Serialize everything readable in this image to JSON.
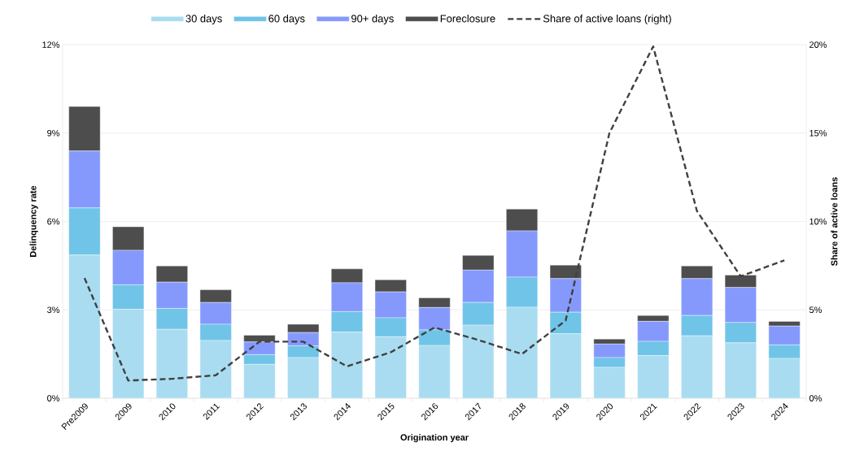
{
  "chart_data": {
    "type": "bar",
    "stacked": true,
    "xlabel": "Origination year",
    "ylabel": "Delinquency rate",
    "y2label": "Share of active loans",
    "categories": [
      "Pre2009",
      "2009",
      "2010",
      "2011",
      "2012",
      "2013",
      "2014",
      "2015",
      "2016",
      "2017",
      "2018",
      "2019",
      "2020",
      "2021",
      "2022",
      "2023",
      "2024"
    ],
    "series": [
      {
        "name": "30 days",
        "color": "#a9dcf0",
        "values": [
          4.86,
          3.02,
          2.34,
          1.96,
          1.15,
          1.38,
          2.25,
          2.09,
          1.79,
          2.48,
          3.09,
          2.19,
          1.05,
          1.45,
          2.12,
          1.88,
          1.35
        ]
      },
      {
        "name": "60 days",
        "color": "#6fc4e8",
        "values": [
          1.6,
          0.83,
          0.71,
          0.55,
          0.33,
          0.4,
          0.69,
          0.64,
          0.53,
          0.77,
          1.02,
          0.73,
          0.33,
          0.48,
          0.69,
          0.69,
          0.46
        ]
      },
      {
        "name": "90+ days",
        "color": "#8599fd",
        "values": [
          1.93,
          1.17,
          0.89,
          0.74,
          0.43,
          0.45,
          0.98,
          0.88,
          0.76,
          1.1,
          1.57,
          1.14,
          0.46,
          0.68,
          1.25,
          1.19,
          0.64
        ]
      },
      {
        "name": "Foreclosure",
        "color": "#4d4d4d",
        "values": [
          1.51,
          0.8,
          0.55,
          0.43,
          0.23,
          0.28,
          0.47,
          0.41,
          0.33,
          0.5,
          0.74,
          0.46,
          0.17,
          0.2,
          0.43,
          0.42,
          0.16
        ]
      },
      {
        "name": "Share of active loans (right)",
        "color": "#404040",
        "type": "line",
        "axis": "y2",
        "line_style": "dashed",
        "values": [
          6.8,
          1.0,
          1.1,
          1.3,
          3.2,
          3.2,
          1.8,
          2.6,
          4.0,
          3.3,
          2.5,
          4.4,
          15.0,
          19.9,
          10.6,
          6.9,
          7.8
        ]
      }
    ],
    "ylim": [
      0,
      12
    ],
    "yticks": [
      {
        "value": 0,
        "label": "0%"
      },
      {
        "value": 3,
        "label": "3%"
      },
      {
        "value": 6,
        "label": "6%"
      },
      {
        "value": 9,
        "label": "9%"
      },
      {
        "value": 12,
        "label": "12%"
      }
    ],
    "y2lim": [
      0,
      20
    ],
    "y2ticks": [
      {
        "value": 0,
        "label": "0%"
      },
      {
        "value": 5,
        "label": "5%"
      },
      {
        "value": 10,
        "label": "10%"
      },
      {
        "value": 15,
        "label": "15%"
      },
      {
        "value": 20,
        "label": "20%"
      }
    ],
    "grid": "y",
    "legend": "top"
  }
}
